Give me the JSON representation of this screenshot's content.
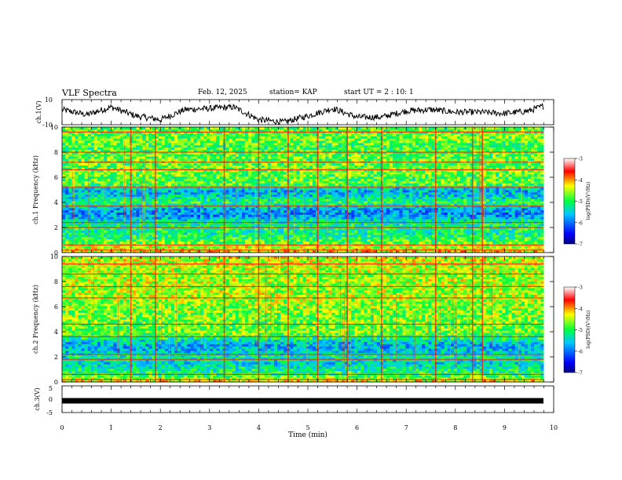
{
  "header": {
    "title": "VLF Spectra",
    "date": "Feb. 12, 2025",
    "station": "station= KAP",
    "start_ut": "start  UT =  2 : 10: 1"
  },
  "colors": {
    "colormap": [
      "#000080",
      "#0000ff",
      "#00c8ff",
      "#00ff40",
      "#ffff00",
      "#ff0000",
      "#ffffff"
    ]
  },
  "chart_data": [
    {
      "type": "line",
      "panel": "ch1-waveform",
      "ylabel": "ch.1(V)",
      "ylim": [
        -10,
        10
      ],
      "y_ticks": [
        "10",
        "-10"
      ],
      "x": [
        0,
        0.5,
        1,
        1.5,
        2,
        2.5,
        3,
        3.5,
        4,
        4.5,
        5,
        5.5,
        6,
        6.5,
        7,
        7.5,
        8,
        8.5,
        9,
        9.5,
        9.8
      ],
      "y": [
        2,
        -2,
        4,
        -3,
        -6,
        2,
        3,
        4,
        -6,
        -8,
        -3,
        3,
        -4,
        -4,
        1,
        2,
        0,
        0,
        -1,
        1,
        5
      ],
      "xlim": [
        0,
        10
      ]
    },
    {
      "type": "heatmap",
      "panel": "ch1-spectrogram",
      "ylabel": "ch.1 Frequency (kHz)",
      "y_ticks": [
        "0",
        "2",
        "4",
        "6",
        "8",
        "10"
      ],
      "ylim": [
        0,
        10
      ],
      "xlim": [
        0,
        10
      ],
      "data_end_min": 9.8,
      "colorbar": {
        "label": "log(PSD)(V²/Hz)",
        "ticks": [
          "-3",
          "-4",
          "-5",
          "-6",
          "-7"
        ],
        "range": [
          -7,
          -3
        ]
      },
      "freq_profile_khz": [
        0,
        0.5,
        1,
        1.5,
        2,
        2.5,
        3,
        3.5,
        4,
        4.5,
        5,
        5.5,
        6,
        6.5,
        7,
        7.5,
        8,
        8.5,
        9,
        9.5,
        10
      ],
      "freq_profile_logpsd": [
        -4.2,
        -4.5,
        -4.9,
        -5.2,
        -5.1,
        -5.3,
        -5.9,
        -5.7,
        -5.0,
        -5.5,
        -5.7,
        -4.7,
        -4.9,
        -4.7,
        -4.8,
        -4.8,
        -4.8,
        -4.9,
        -4.7,
        -4.8,
        -4.8
      ],
      "tone_lines_khz": [
        0.2,
        0.6,
        2.0,
        2.4,
        3.7,
        5.2,
        6.6,
        7.2,
        8.0,
        9.6
      ],
      "impulse_times_min": [
        1.4,
        1.9,
        3.3,
        4.0,
        4.6,
        5.2,
        5.8,
        6.5,
        7.6,
        8.35,
        8.55
      ]
    },
    {
      "type": "heatmap",
      "panel": "ch2-spectrogram",
      "ylabel": "ch.2 Frequency (kHz)",
      "y_ticks": [
        "0",
        "2",
        "4",
        "6",
        "8",
        "10"
      ],
      "ylim": [
        0,
        10
      ],
      "xlim": [
        0,
        10
      ],
      "data_end_min": 9.8,
      "colorbar": {
        "label": "log(PSD)(V²/Hz)",
        "ticks": [
          "-3",
          "-4",
          "-5",
          "-6",
          "-7"
        ],
        "range": [
          -7,
          -3
        ]
      },
      "freq_profile_khz": [
        0,
        0.5,
        1,
        1.5,
        2,
        2.5,
        3,
        3.5,
        4,
        4.5,
        5,
        5.5,
        6,
        6.5,
        7,
        7.5,
        8,
        8.5,
        9,
        9.5,
        10
      ],
      "freq_profile_logpsd": [
        -4.2,
        -4.9,
        -5.2,
        -5.5,
        -5.2,
        -5.6,
        -5.7,
        -5.1,
        -4.7,
        -4.8,
        -4.7,
        -4.7,
        -4.6,
        -4.6,
        -4.5,
        -4.6,
        -4.5,
        -4.6,
        -4.5,
        -4.5,
        -4.4
      ],
      "tone_lines_khz": [
        0.2,
        0.6,
        1.8,
        2.2,
        3.6,
        4.6,
        6.7,
        7.6,
        8.6,
        9.4
      ],
      "impulse_times_min": [
        1.4,
        1.9,
        3.3,
        4.0,
        4.6,
        5.2,
        5.8,
        6.5,
        7.6,
        8.35,
        8.55
      ]
    },
    {
      "type": "line",
      "panel": "ch3-waveform",
      "ylabel": "ch.3(V)",
      "ylim": [
        -5,
        5
      ],
      "y_ticks": [
        "5",
        "0",
        "-5"
      ],
      "x": [
        0,
        9.8
      ],
      "y": [
        0,
        0
      ],
      "xlim": [
        0,
        10
      ]
    }
  ],
  "x_axis": {
    "label": "Time  (min)",
    "ticks": [
      "0",
      "1",
      "2",
      "3",
      "4",
      "5",
      "6",
      "7",
      "8",
      "9",
      "10"
    ]
  }
}
